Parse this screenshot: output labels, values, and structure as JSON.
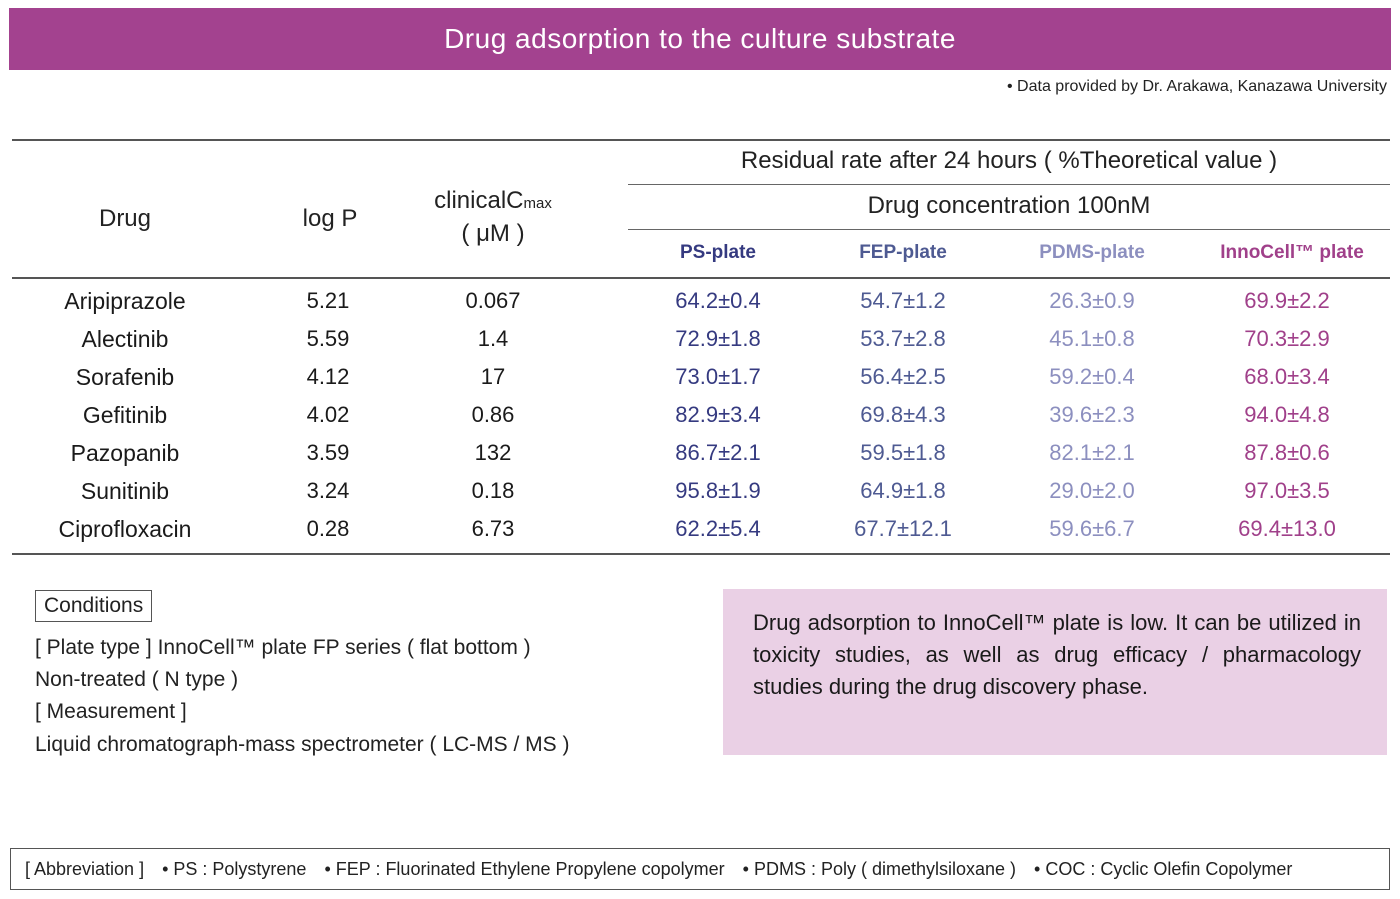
{
  "title": "Drug adsorption to the culture substrate",
  "credit": "• Data provided by Dr. Arakawa, Kanazawa University",
  "table": {
    "headers": {
      "drug": "Drug",
      "logp": "log P",
      "cmax_main": "clinicalC",
      "cmax_sub": "max",
      "cmax_unit": "( μM )",
      "residual": "Residual rate after 24 hours ( %Theoretical value )",
      "concentration": "Drug concentration 100nM",
      "ps": "PS-plate",
      "fep": "FEP-plate",
      "pdms": "PDMS-plate",
      "inno": "InnoCell™ plate"
    },
    "rows": [
      {
        "drug": "Aripiprazole",
        "logp": "5.21",
        "cmax": "0.067",
        "ps": "64.2±0.4",
        "fep": "54.7±1.2",
        "pdms": "26.3±0.9",
        "inno": "69.9±2.2"
      },
      {
        "drug": "Alectinib",
        "logp": "5.59",
        "cmax": "1.4",
        "ps": "72.9±1.8",
        "fep": "53.7±2.8",
        "pdms": "45.1±0.8",
        "inno": "70.3±2.9"
      },
      {
        "drug": "Sorafenib",
        "logp": "4.12",
        "cmax": "17",
        "ps": "73.0±1.7",
        "fep": "56.4±2.5",
        "pdms": "59.2±0.4",
        "inno": "68.0±3.4"
      },
      {
        "drug": "Gefitinib",
        "logp": "4.02",
        "cmax": "0.86",
        "ps": "82.9±3.4",
        "fep": "69.8±4.3",
        "pdms": "39.6±2.3",
        "inno": "94.0±4.8"
      },
      {
        "drug": "Pazopanib",
        "logp": "3.59",
        "cmax": "132",
        "ps": "86.7±2.1",
        "fep": "59.5±1.8",
        "pdms": "82.1±2.1",
        "inno": "87.8±0.6"
      },
      {
        "drug": "Sunitinib",
        "logp": "3.24",
        "cmax": "0.18",
        "ps": "95.8±1.9",
        "fep": "64.9±1.8",
        "pdms": "29.0±2.0",
        "inno": "97.0±3.5"
      },
      {
        "drug": "Ciprofloxacin",
        "logp": "0.28",
        "cmax": "6.73",
        "ps": "62.2±5.4",
        "fep": "67.7±12.1",
        "pdms": "59.6±6.7",
        "inno": "69.4±13.0"
      }
    ]
  },
  "conditions": {
    "label": "Conditions",
    "lines": [
      "[ Plate type ]  InnoCell™ plate FP series ( flat bottom )",
      "Non-treated ( N type )",
      "[ Measurement ]",
      "Liquid chromatograph-mass spectrometer ( LC-MS / MS )"
    ]
  },
  "note": "Drug adsorption to InnoCell™ plate is low. It can be utilized in toxicity studies, as well as drug efficacy / pharmacology studies during the drug discovery phase.",
  "abbreviations": [
    "[ Abbreviation ]",
    "• PS : Polystyrene",
    "• FEP : Fluorinated Ethylene Propylene copolymer",
    "• PDMS : Poly ( dimethylsiloxane )",
    "• COC : Cyclic Olefin Copolymer"
  ],
  "colors": {
    "banner": "#a3428f",
    "ps": "#353a80",
    "fep": "#4e5a92",
    "pdms": "#8c8fbf",
    "inno": "#a0408a",
    "note_bg": "#ead0e5"
  }
}
